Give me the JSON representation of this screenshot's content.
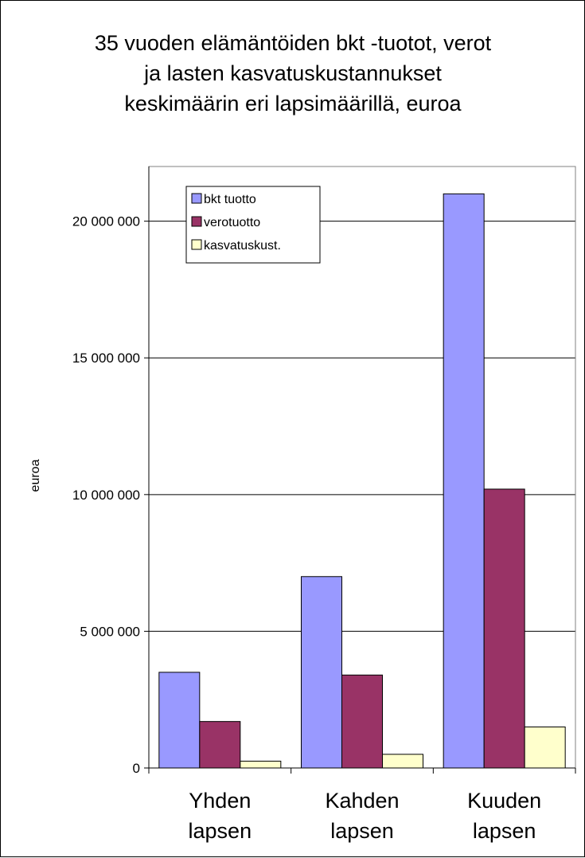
{
  "chart_data": {
    "type": "bar",
    "title": [
      "35 vuoden elämäntöiden bkt -tuotot, verot",
      "ja lasten kasvatuskustannukset",
      "keskimäärin eri lapsimäärillä, euroa"
    ],
    "xlabel": "",
    "ylabel": "euroa",
    "categories": [
      [
        "Yhden",
        "lapsen"
      ],
      [
        "Kahden",
        "lapsen"
      ],
      [
        "Kuuden",
        "lapsen"
      ]
    ],
    "series": [
      {
        "name": "bkt tuotto",
        "values": [
          3500000,
          7000000,
          21000000
        ],
        "color": "#9999ff"
      },
      {
        "name": "verotuotto",
        "values": [
          1700000,
          3400000,
          10200000
        ],
        "color": "#993366"
      },
      {
        "name": "kasvatuskust.",
        "values": [
          250000,
          500000,
          1500000
        ],
        "color": "#ffffcc"
      }
    ],
    "ylim": [
      0,
      22000000
    ],
    "yticks": [
      0,
      5000000,
      10000000,
      15000000,
      20000000
    ],
    "ytick_labels": [
      "0",
      "5 000 000",
      "10 000 000",
      "15 000 000",
      "20 000 000"
    ],
    "grid": true,
    "plot_background": "#ffffff",
    "legend_position": "top-left inside plot"
  }
}
